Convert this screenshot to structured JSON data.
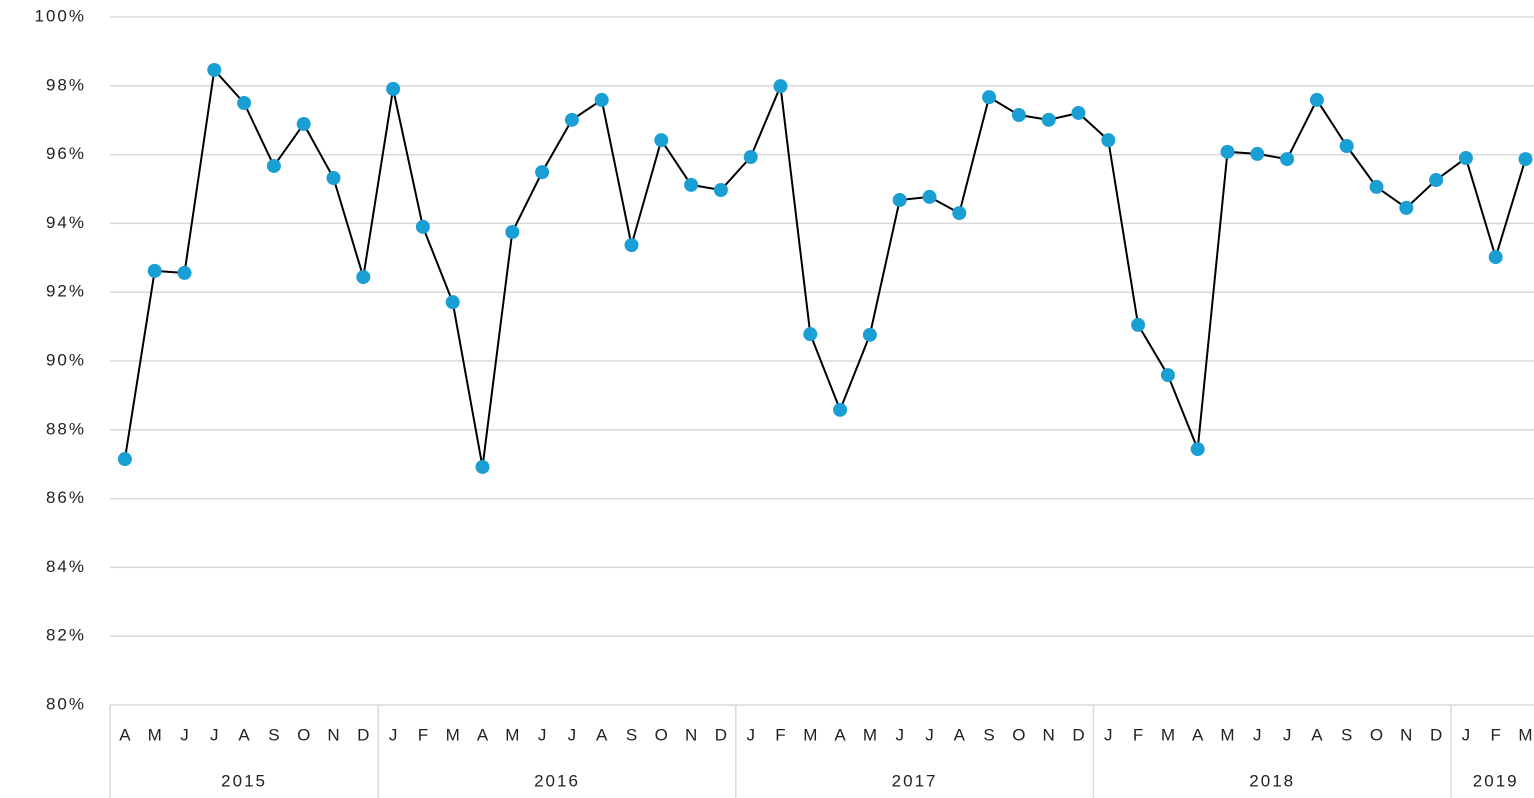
{
  "chart_data": {
    "type": "line",
    "categories": [
      "A",
      "M",
      "J",
      "J",
      "A",
      "S",
      "O",
      "N",
      "D",
      "J",
      "F",
      "M",
      "A",
      "M",
      "J",
      "J",
      "A",
      "S",
      "O",
      "N",
      "D",
      "J",
      "F",
      "M",
      "A",
      "M",
      "J",
      "J",
      "A",
      "S",
      "O",
      "N",
      "D",
      "J",
      "F",
      "M",
      "A",
      "M",
      "J",
      "J",
      "A",
      "S",
      "O",
      "N",
      "D",
      "J",
      "F",
      "M"
    ],
    "groups": [
      {
        "label": "2015",
        "size": 9
      },
      {
        "label": "2016",
        "size": 12
      },
      {
        "label": "2017",
        "size": 12
      },
      {
        "label": "2018",
        "size": 12
      },
      {
        "label": "2019",
        "size": 3
      }
    ],
    "series": [
      {
        "color": "#000000",
        "marker_color": "#1a9fd4",
        "values": [
          87.15,
          92.62,
          92.56,
          98.46,
          97.5,
          95.67,
          96.89,
          95.32,
          92.44,
          97.91,
          93.9,
          91.71,
          86.92,
          93.75,
          95.49,
          97.01,
          97.59,
          93.37,
          96.42,
          95.12,
          94.97,
          95.93,
          97.99,
          90.78,
          88.58,
          90.76,
          94.68,
          94.77,
          94.3,
          97.67,
          97.15,
          97.01,
          97.21,
          96.42,
          91.05,
          89.59,
          87.44,
          96.08,
          96.02,
          95.87,
          97.59,
          96.25,
          95.06,
          94.45,
          95.26,
          95.9,
          93.02,
          95.87
        ]
      }
    ],
    "ylim": [
      80,
      100
    ],
    "yticks": [
      {
        "value": 80,
        "label": "80%"
      },
      {
        "value": 82,
        "label": "82%"
      },
      {
        "value": 84,
        "label": "84%"
      },
      {
        "value": 86,
        "label": "86%"
      },
      {
        "value": 88,
        "label": "88%"
      },
      {
        "value": 90,
        "label": "90%"
      },
      {
        "value": 92,
        "label": "92%"
      },
      {
        "value": 94,
        "label": "94%"
      },
      {
        "value": 96,
        "label": "96%"
      },
      {
        "value": 98,
        "label": "98%"
      },
      {
        "value": 100,
        "label": "100%"
      }
    ],
    "grid": true
  }
}
